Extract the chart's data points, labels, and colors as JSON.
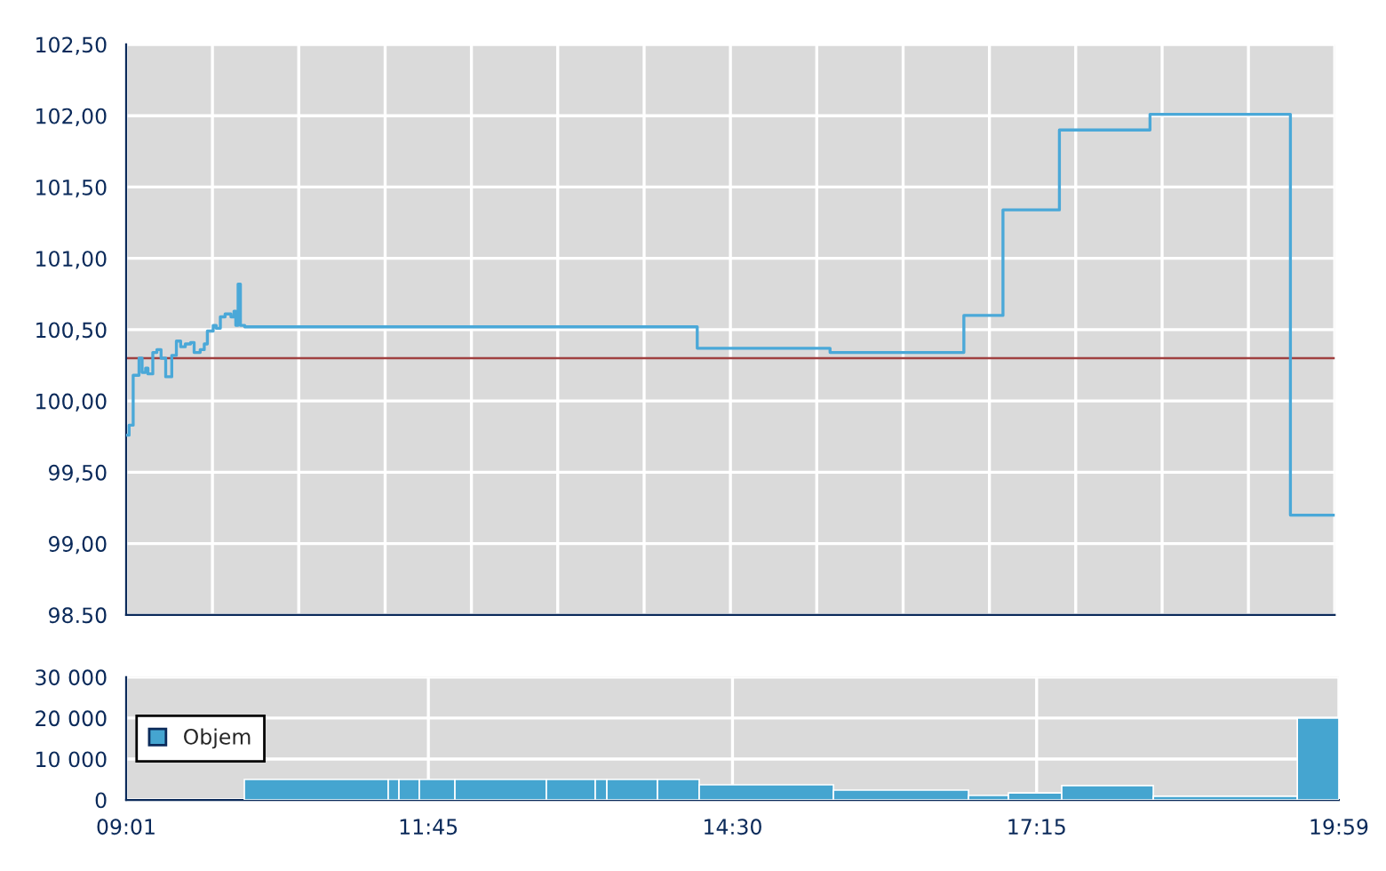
{
  "chart_data": [
    {
      "type": "step",
      "x": [
        9.017,
        9.044,
        9.07,
        9.081,
        9.118,
        9.134,
        9.162,
        9.194,
        9.215,
        9.259,
        9.296,
        9.334,
        9.376,
        9.409,
        9.431,
        9.473,
        9.512,
        9.554,
        9.602,
        9.634,
        9.689,
        9.726,
        9.754,
        9.807,
        9.834,
        9.872,
        9.915,
        9.968,
        9.996,
        10.012,
        10.033,
        10.054,
        10.093,
        14.199,
        15.404,
        16.618,
        16.973,
        17.485,
        18.307,
        19.581,
        19.983
      ],
      "series": [
        {
          "color": "#4aa8d8",
          "values": [
            99.76,
            99.83,
            99.83,
            100.18,
            100.18,
            100.3,
            100.2,
            100.23,
            100.19,
            100.34,
            100.36,
            100.3,
            100.17,
            100.17,
            100.32,
            100.42,
            100.38,
            100.4,
            100.41,
            100.34,
            100.36,
            100.4,
            100.49,
            100.53,
            100.51,
            100.59,
            100.61,
            100.59,
            100.63,
            100.53,
            100.82,
            100.53,
            100.52,
            100.37,
            100.34,
            100.6,
            101.34,
            101.9,
            102.01,
            99.2,
            99.2
          ]
        }
      ],
      "xlim": [
        9.017,
        19.983
      ],
      "xticks": [
        {
          "value": 9.017,
          "label": null
        },
        {
          "value": 9.8,
          "label": null
        },
        {
          "value": 10.583,
          "label": null
        },
        {
          "value": 11.367,
          "label": null
        },
        {
          "value": 12.15,
          "label": null
        },
        {
          "value": 12.933,
          "label": null
        },
        {
          "value": 13.717,
          "label": null
        },
        {
          "value": 14.5,
          "label": null
        },
        {
          "value": 15.283,
          "label": null
        },
        {
          "value": 16.067,
          "label": null
        },
        {
          "value": 16.85,
          "label": null
        },
        {
          "value": 17.633,
          "label": null
        },
        {
          "value": 18.417,
          "label": null
        },
        {
          "value": 19.2,
          "label": null
        },
        {
          "value": 19.983,
          "label": null
        }
      ],
      "ylim": [
        98.5,
        102.5
      ],
      "yticks": [
        {
          "value": 98.5,
          "label": "98.50"
        },
        {
          "value": 99.0,
          "label": "99,00"
        },
        {
          "value": 99.5,
          "label": "99,50"
        },
        {
          "value": 100.0,
          "label": "100,00"
        },
        {
          "value": 100.5,
          "label": "100,50"
        },
        {
          "value": 101.0,
          "label": "101,00"
        },
        {
          "value": 101.5,
          "label": "101,50"
        },
        {
          "value": 102.0,
          "label": "102,00"
        },
        {
          "value": 102.5,
          "label": "102,50"
        }
      ],
      "ref_lines": [
        {
          "axis": "y",
          "value": 100.3,
          "color": "#a04040"
        }
      ],
      "grid": true,
      "tick_labels": "y"
    },
    {
      "type": "histogram",
      "bins": [
        10.086,
        11.387,
        11.484,
        11.668,
        11.99,
        12.817,
        13.259,
        13.364,
        13.822,
        14.199,
        15.413,
        16.634,
        16.995,
        17.477,
        18.305,
        19.607,
        19.983
      ],
      "series": [
        {
          "name": "Objem",
          "color": "#45a5d0",
          "values": [
            5000,
            5000,
            5000,
            5000,
            5000,
            5000,
            5000,
            5000,
            5000,
            3700,
            2400,
            1100,
            1700,
            3500,
            900,
            20000
          ]
        }
      ],
      "xlim": [
        9.017,
        19.983
      ],
      "xticks": [
        {
          "value": 9.017,
          "label": "09:01"
        },
        {
          "value": 11.75,
          "label": "11:45"
        },
        {
          "value": 14.5,
          "label": "14:30"
        },
        {
          "value": 17.25,
          "label": "17:15"
        },
        {
          "value": 19.983,
          "label": "19:59"
        }
      ],
      "ylim": [
        0,
        30000
      ],
      "yticks": [
        {
          "value": 0,
          "label": "0"
        },
        {
          "value": 10000,
          "label": "10 000"
        },
        {
          "value": 20000,
          "label": "20 000"
        },
        {
          "value": 30000,
          "label": "30 000"
        }
      ],
      "grid": true,
      "legend": "left"
    }
  ]
}
